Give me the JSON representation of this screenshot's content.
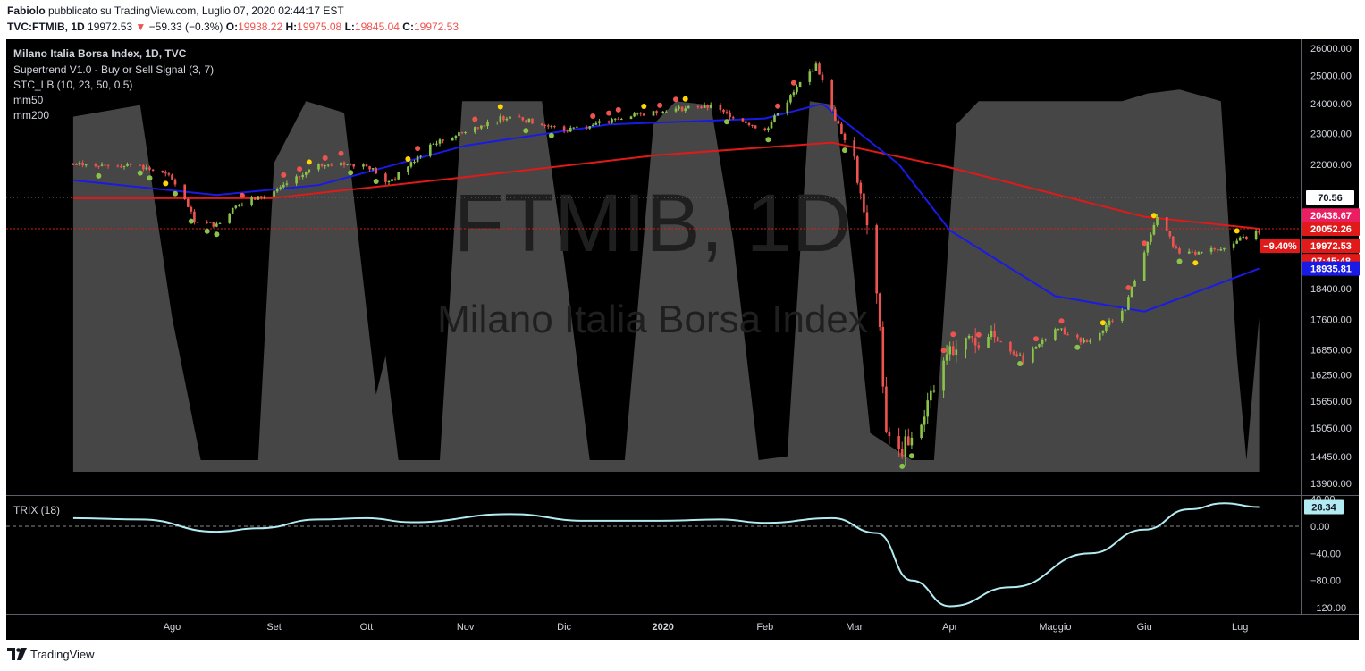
{
  "header": {
    "author": "Fabiolo",
    "published": "pubblicato su TradingView.com, Luglio 07, 2020 02:44:17 EST",
    "symbol": "TVC:FTMIB, 1D",
    "last": "19972.53",
    "change_arrow": "▼",
    "change": "−59.33 (−0.3%)",
    "o_label": "O:",
    "o_value": "19938.22",
    "h_label": "H:",
    "h_value": "19975.08",
    "l_label": "L:",
    "l_value": "19845.04",
    "c_label": "C:",
    "c_value": "19972.53"
  },
  "legend": {
    "title": "Milano Italia Borsa Index, 1D, TVC",
    "items": [
      "Supertrend V1.0 - Buy or Sell Signal (3, 7)",
      "STC_LB (10, 23, 50, 0.5)",
      "mm50",
      "mm200"
    ]
  },
  "watermark": {
    "big": "FTMIB, 1D",
    "small": "Milano Italia Borsa Index"
  },
  "trix_label": "TRIX (18)",
  "footer": {
    "brand": "TradingView",
    "logo_icon": "tradingview-logo-icon"
  },
  "colors": {
    "background": "#000000",
    "up": "#8bc34a",
    "down": "#ef5350",
    "mm50": "#1a1ae6",
    "mm200": "#e01919",
    "supertrend_up": "#4caf50",
    "supertrend_down": "#e91e63",
    "stc_fill": "#4a4a4a",
    "trix": "#b2ebf2"
  },
  "chart_data": [
    {
      "type": "candlestick",
      "title": "Milano Italia Borsa Index, 1D, TVC",
      "x_ticks": [
        "Ago",
        "Set",
        "Ott",
        "Nov",
        "Dic",
        "2020",
        "Feb",
        "Mar",
        "Apr",
        "Maggio",
        "Giu",
        "Lug"
      ],
      "y_ticks": [
        26000,
        25000,
        24000,
        23000,
        22000,
        18400,
        17600,
        16850,
        16250,
        15650,
        15050,
        14450,
        13900
      ],
      "y_scale": "log",
      "ylim": [
        13700,
        26300
      ],
      "close_series": [
        [
          "2019-07-08",
          22000
        ],
        [
          "2019-07-22",
          21950
        ],
        [
          "2019-08-01",
          21600
        ],
        [
          "2019-08-08",
          20300
        ],
        [
          "2019-08-15",
          20150
        ],
        [
          "2019-08-22",
          20800
        ],
        [
          "2019-09-02",
          21100
        ],
        [
          "2019-09-16",
          22000
        ],
        [
          "2019-10-01",
          22000
        ],
        [
          "2019-10-08",
          21400
        ],
        [
          "2019-10-21",
          22600
        ],
        [
          "2019-11-04",
          23200
        ],
        [
          "2019-11-15",
          23600
        ],
        [
          "2019-12-02",
          23100
        ],
        [
          "2019-12-16",
          23400
        ],
        [
          "2020-01-02",
          23800
        ],
        [
          "2020-01-17",
          23900
        ],
        [
          "2020-02-03",
          23100
        ],
        [
          "2020-02-19",
          25400
        ],
        [
          "2020-02-25",
          23500
        ],
        [
          "2020-03-02",
          22100
        ],
        [
          "2020-03-06",
          20200
        ],
        [
          "2020-03-09",
          18400
        ],
        [
          "2020-03-12",
          15000
        ],
        [
          "2020-03-16",
          14500
        ],
        [
          "2020-03-23",
          15200
        ],
        [
          "2020-04-01",
          16800
        ],
        [
          "2020-04-14",
          17200
        ],
        [
          "2020-04-24",
          16600
        ],
        [
          "2020-05-04",
          17400
        ],
        [
          "2020-05-14",
          17000
        ],
        [
          "2020-05-26",
          17900
        ],
        [
          "2020-06-05",
          20400
        ],
        [
          "2020-06-12",
          19300
        ],
        [
          "2020-06-25",
          19500
        ],
        [
          "2020-07-07",
          19972.53
        ]
      ],
      "mm50": [
        [
          "2019-07-01",
          21500
        ],
        [
          "2019-08-15",
          21050
        ],
        [
          "2019-09-16",
          21350
        ],
        [
          "2019-11-01",
          22600
        ],
        [
          "2019-12-16",
          23300
        ],
        [
          "2020-02-03",
          23500
        ],
        [
          "2020-02-21",
          24000
        ],
        [
          "2020-03-16",
          22000
        ],
        [
          "2020-04-01",
          20000
        ],
        [
          "2020-05-04",
          18200
        ],
        [
          "2020-06-01",
          17800
        ],
        [
          "2020-07-07",
          18935.81
        ]
      ],
      "mm200": [
        [
          "2019-07-01",
          20950
        ],
        [
          "2019-09-01",
          20950
        ],
        [
          "2019-11-01",
          21600
        ],
        [
          "2020-01-01",
          22300
        ],
        [
          "2020-02-24",
          22700
        ],
        [
          "2020-04-01",
          21900
        ],
        [
          "2020-06-01",
          20400
        ],
        [
          "2020-07-07",
          20052.26
        ]
      ],
      "price_labels": {
        "stc_value": "70.56",
        "supertrend": "20438.67",
        "mm200": "20052.26",
        "last": "19972.53",
        "pct": "−9.40%",
        "countdown": "07:45:48",
        "mm50": "18935.81"
      }
    },
    {
      "type": "line",
      "title": "TRIX (18)",
      "y_ticks": [
        40,
        0,
        -40,
        -80,
        -120
      ],
      "ylim": [
        -130,
        48
      ],
      "series": [
        {
          "name": "TRIX (18)",
          "points": [
            [
              "2019-07-01",
              12
            ],
            [
              "2019-07-22",
              10
            ],
            [
              "2019-08-15",
              -8
            ],
            [
              "2019-08-28",
              -3
            ],
            [
              "2019-09-16",
              10
            ],
            [
              "2019-10-01",
              12
            ],
            [
              "2019-10-15",
              6
            ],
            [
              "2019-11-15",
              18
            ],
            [
              "2019-12-09",
              8
            ],
            [
              "2020-01-01",
              8
            ],
            [
              "2020-01-20",
              10
            ],
            [
              "2020-02-03",
              5
            ],
            [
              "2020-02-24",
              12
            ],
            [
              "2020-03-09",
              -10
            ],
            [
              "2020-03-20",
              -80
            ],
            [
              "2020-04-01",
              -118
            ],
            [
              "2020-04-20",
              -90
            ],
            [
              "2020-05-15",
              -40
            ],
            [
              "2020-06-01",
              -5
            ],
            [
              "2020-06-15",
              25
            ],
            [
              "2020-06-26",
              34
            ],
            [
              "2020-07-07",
              28.34
            ]
          ]
        }
      ],
      "last_value": "28.34"
    }
  ]
}
